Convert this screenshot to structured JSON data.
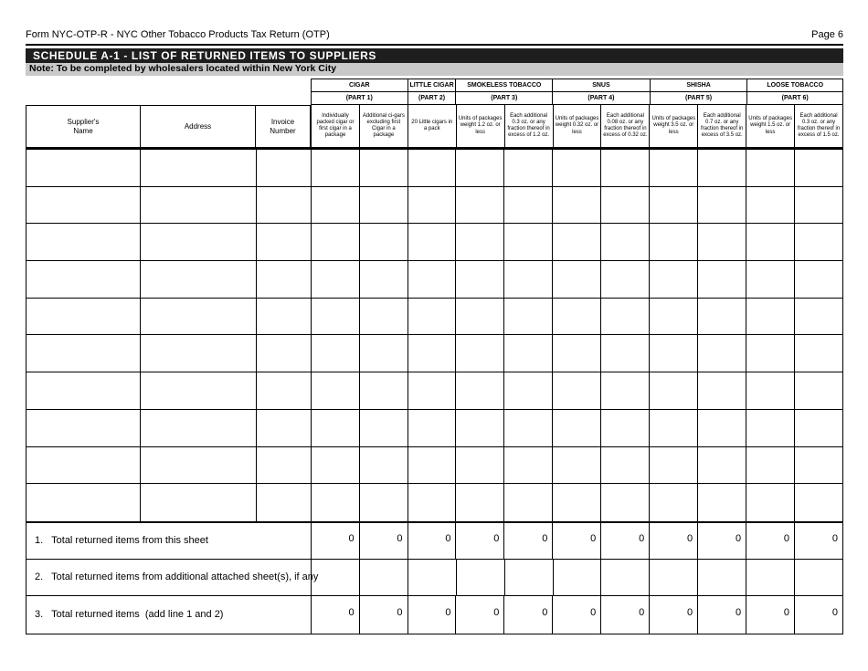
{
  "page": {
    "form_title": "Form NYC-OTP-R  -  NYC Other Tobacco Products Tax Return (OTP)",
    "page_number": "Page 6"
  },
  "schedule": {
    "title": "SCHEDULE A-1 - LIST OF RETURNED ITEMS TO SUPPLIERS",
    "note": "Note: To be completed by wholesalers located within New York City"
  },
  "table": {
    "groups": [
      {
        "label": "CIGAR",
        "part": "(PART 1)"
      },
      {
        "label": "LITTLE CIGAR",
        "part": "(PART 2)"
      },
      {
        "label": "SMOKELESS TOBACCO",
        "part": "(PART 3)"
      },
      {
        "label": "SNUS",
        "part": "(PART 4)"
      },
      {
        "label": "SHISHA",
        "part": "(PART 5)"
      },
      {
        "label": "LOOSE TOBACCO",
        "part": "(PART 6)"
      }
    ],
    "left_columns": [
      {
        "label": "Supplier's\nName"
      },
      {
        "label": "Address"
      },
      {
        "label": "Invoice\nNumber"
      }
    ],
    "tax_columns": [
      "Individually packed cigar or first cigar in a package",
      "Additional ci-gars excluding first Cigar in a package",
      "20 Little cigars in a pack",
      "Units of packages weight 1.2 oz. or less",
      "Each additional 0.3 oz. or any fraction thereof in excess of 1.2 oz.",
      "Units of packages weight 0.32 oz. or less",
      "Each additional 0.08 oz. or any fraction thereof in excess of 0.32 oz.",
      "Units of packages weight 3.5 oz. or less",
      "Each additional 0.7 oz. or any fraction thereof in excess of 3.5 oz.",
      "Units of packages weight 1.5 oz. or less",
      "Each additional 0.3 oz. or any fraction thereof in excess of 1.5 oz."
    ],
    "body_row_count": 10
  },
  "totals": {
    "rows": [
      {
        "label": "1.   Total returned items from this sheet",
        "values": [
          "0",
          "0",
          "0",
          "0",
          "0",
          "0",
          "0",
          "0",
          "0",
          "0",
          "0"
        ]
      },
      {
        "label": "2.   Total returned items from additional attached sheet(s), if any",
        "values": [
          "",
          "",
          "",
          "",
          "",
          "",
          "",
          "",
          "",
          "",
          ""
        ]
      },
      {
        "label": "3.   Total returned items  (add line 1 and 2)",
        "values": [
          "0",
          "0",
          "0",
          "0",
          "0",
          "0",
          "0",
          "0",
          "0",
          "0",
          "0"
        ]
      }
    ]
  },
  "colors": {
    "bar_black": "#1e1e1e",
    "note_gray": "#c9c9c9",
    "border": "#000000"
  }
}
